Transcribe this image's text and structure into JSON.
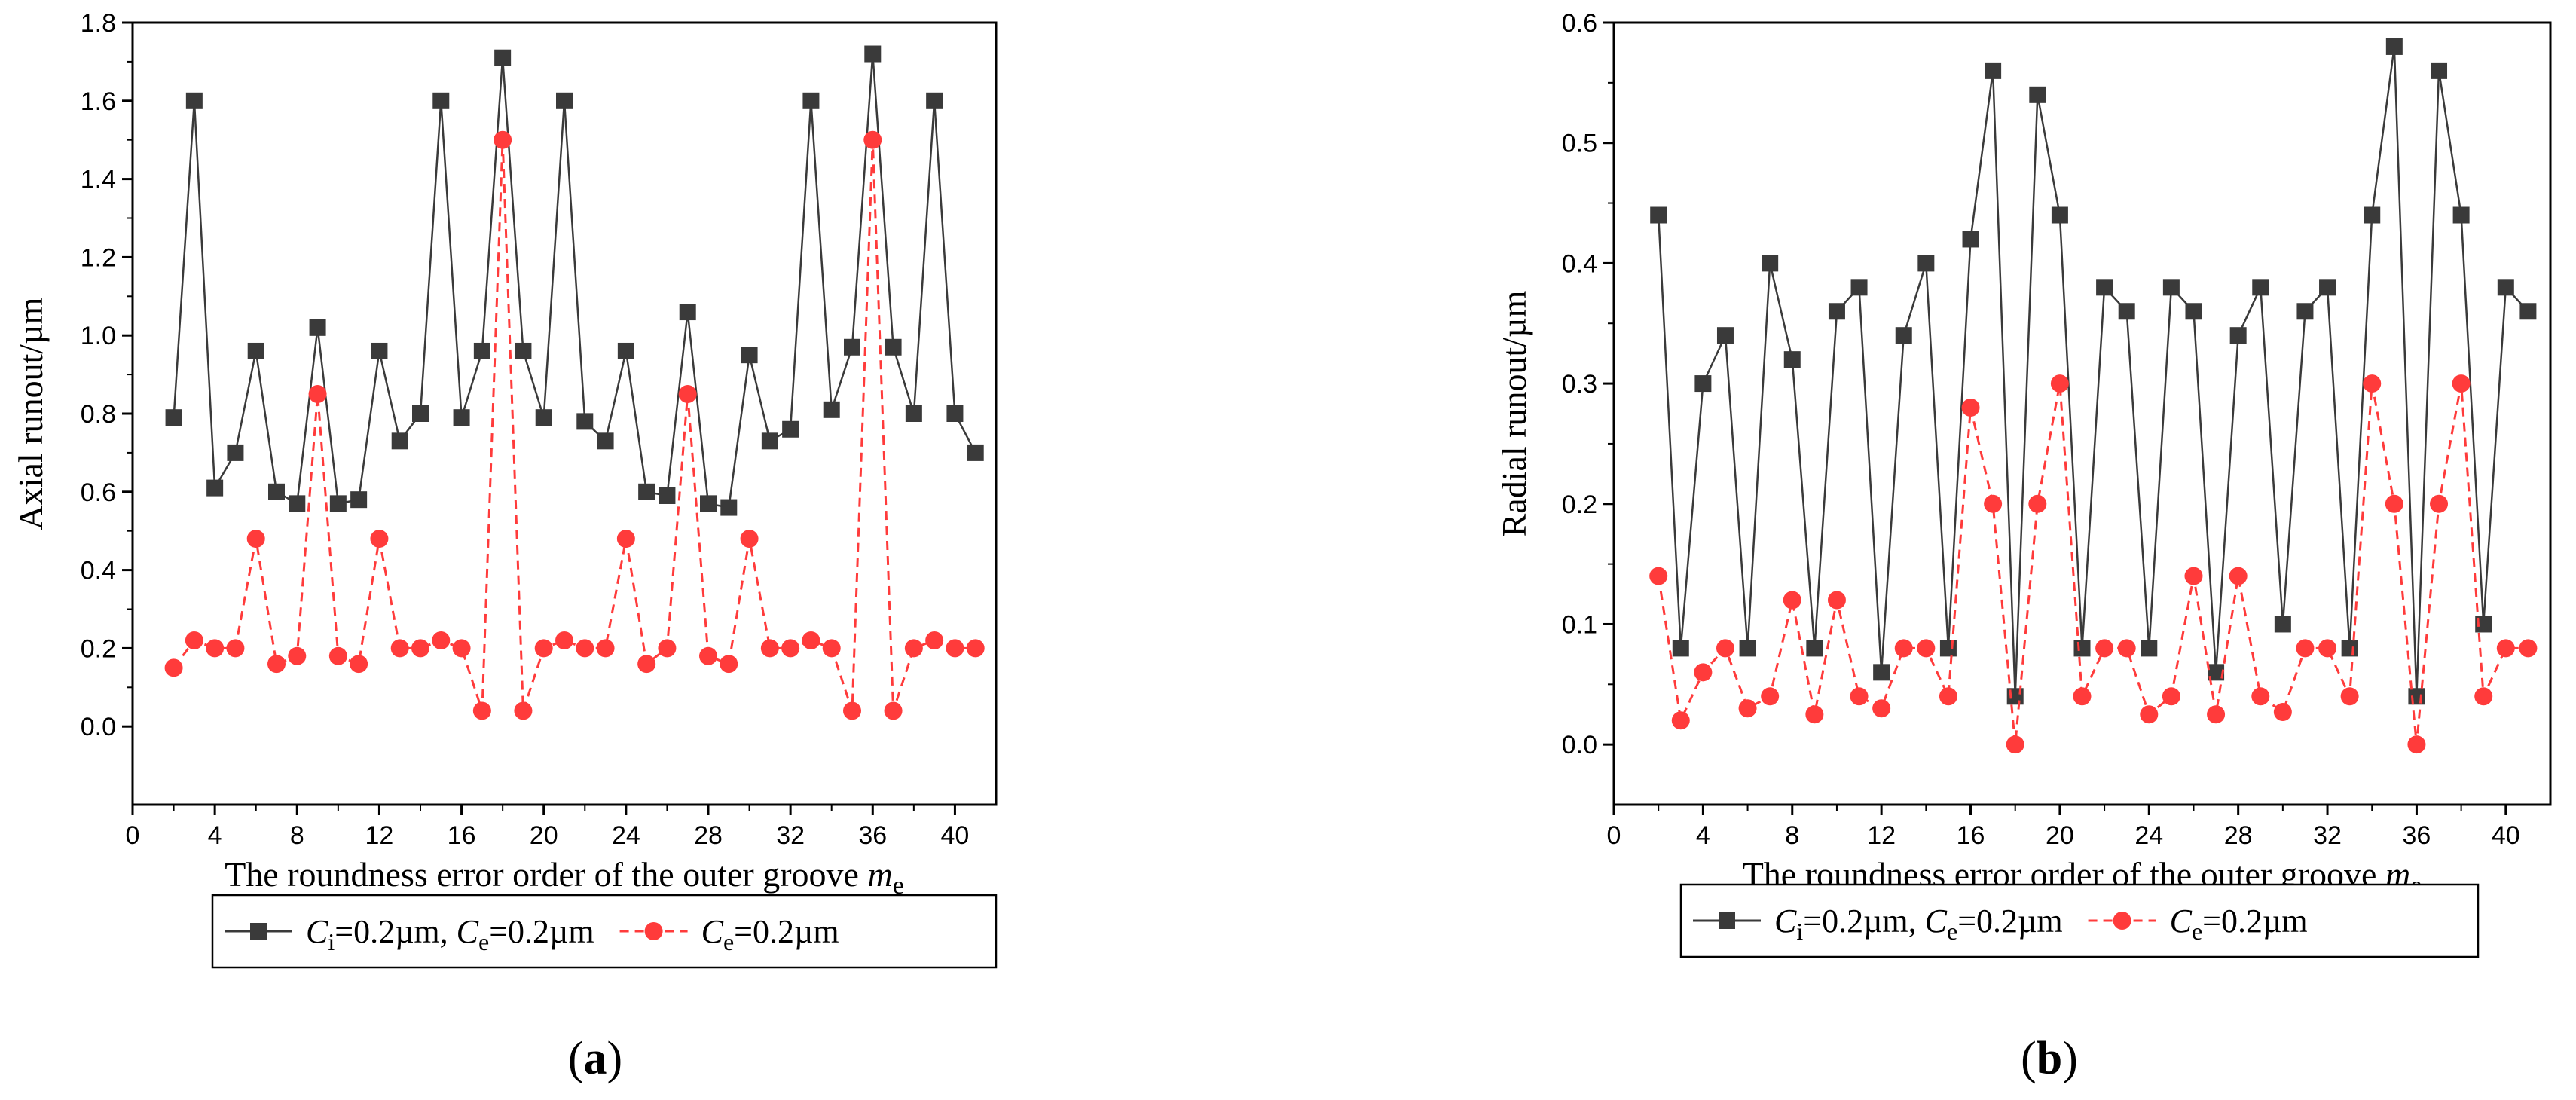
{
  "chart_data": [
    {
      "type": "line",
      "panel_label": "a",
      "xlabel": "The roundness error order of the outer groove ",
      "xlabel_var": "m",
      "xlabel_sub": "e",
      "ylabel": "Axial runout/µm",
      "xlim": [
        0,
        42
      ],
      "ylim": [
        -0.2,
        1.8
      ],
      "xticks": [
        0,
        4,
        8,
        12,
        16,
        20,
        24,
        28,
        32,
        36,
        40
      ],
      "xtick_labels": [
        "0",
        "4",
        "8",
        "12",
        "16",
        "20",
        "24",
        "28",
        "32",
        "36",
        "40"
      ],
      "yticks": [
        0.0,
        0.2,
        0.4,
        0.6,
        0.8,
        1.0,
        1.2,
        1.4,
        1.6,
        1.8
      ],
      "ytick_labels": [
        "0.0",
        "0.2",
        "0.4",
        "0.6",
        "0.8",
        "1.0",
        "1.2",
        "1.4",
        "1.6",
        "1.8"
      ],
      "x": [
        2,
        3,
        4,
        5,
        6,
        7,
        8,
        9,
        10,
        11,
        12,
        13,
        14,
        15,
        16,
        17,
        18,
        19,
        20,
        21,
        22,
        23,
        24,
        25,
        26,
        27,
        28,
        29,
        30,
        31,
        32,
        33,
        34,
        35,
        36,
        37,
        38,
        39,
        40,
        41
      ],
      "series": [
        {
          "name": "Ci=0.2µm, Ce=0.2µm",
          "legend_parts": [
            [
              "C",
              ""
            ],
            [
              "i",
              "sub"
            ],
            [
              "=0.2µm, ",
              ""
            ],
            [
              "C",
              ""
            ],
            [
              "e",
              "sub"
            ],
            [
              "=0.2µm",
              ""
            ]
          ],
          "color": "#3a3a3a",
          "marker": "square",
          "dash": "solid",
          "values": [
            0.79,
            1.6,
            0.61,
            0.7,
            0.96,
            0.6,
            0.57,
            1.02,
            0.57,
            0.58,
            0.96,
            0.73,
            0.8,
            1.6,
            0.79,
            0.96,
            1.71,
            0.96,
            0.79,
            1.6,
            0.78,
            0.73,
            0.96,
            0.6,
            0.59,
            1.06,
            0.57,
            0.56,
            0.95,
            0.73,
            0.76,
            1.6,
            0.81,
            0.97,
            1.72,
            0.97,
            0.8,
            1.6,
            0.8,
            0.7
          ]
        },
        {
          "name": "Ce=0.2µm",
          "legend_parts": [
            [
              "C",
              ""
            ],
            [
              "e",
              "sub"
            ],
            [
              "=0.2µm",
              ""
            ]
          ],
          "color": "#ff3b3b",
          "marker": "circle",
          "dash": "dashed",
          "values": [
            0.15,
            0.22,
            0.2,
            0.2,
            0.48,
            0.16,
            0.18,
            0.85,
            0.18,
            0.16,
            0.48,
            0.2,
            0.2,
            0.22,
            0.2,
            0.04,
            1.5,
            0.04,
            0.2,
            0.22,
            0.2,
            0.2,
            0.48,
            0.16,
            0.2,
            0.85,
            0.18,
            0.16,
            0.48,
            0.2,
            0.2,
            0.22,
            0.2,
            0.04,
            1.5,
            0.04,
            0.2,
            0.22,
            0.2,
            0.2
          ]
        }
      ]
    },
    {
      "type": "line",
      "panel_label": "b",
      "xlabel": "The roundness error order of the outer groove ",
      "xlabel_var": "m",
      "xlabel_sub": "e",
      "ylabel": "Radial runout/µm",
      "xlim": [
        0,
        42
      ],
      "ylim": [
        -0.05,
        0.6
      ],
      "xticks": [
        0,
        4,
        8,
        12,
        16,
        20,
        24,
        28,
        32,
        36,
        40
      ],
      "xtick_labels": [
        "0",
        "4",
        "8",
        "12",
        "16",
        "20",
        "24",
        "28",
        "32",
        "36",
        "40"
      ],
      "yticks": [
        0.0,
        0.1,
        0.2,
        0.3,
        0.4,
        0.5,
        0.6
      ],
      "ytick_labels": [
        "0.0",
        "0.1",
        "0.2",
        "0.3",
        "0.4",
        "0.5",
        "0.6"
      ],
      "x": [
        2,
        3,
        4,
        5,
        6,
        7,
        8,
        9,
        10,
        11,
        12,
        13,
        14,
        15,
        16,
        17,
        18,
        19,
        20,
        21,
        22,
        23,
        24,
        25,
        26,
        27,
        28,
        29,
        30,
        31,
        32,
        33,
        34,
        35,
        36,
        37,
        38,
        39,
        40,
        41
      ],
      "series": [
        {
          "name": "Ci=0.2µm, Ce=0.2µm",
          "legend_parts": [
            [
              "C",
              ""
            ],
            [
              "i",
              "sub"
            ],
            [
              "=0.2µm, ",
              ""
            ],
            [
              "C",
              ""
            ],
            [
              "e",
              "sub"
            ],
            [
              "=0.2µm",
              ""
            ]
          ],
          "color": "#3a3a3a",
          "marker": "square",
          "dash": "solid",
          "values": [
            0.44,
            0.08,
            0.3,
            0.34,
            0.08,
            0.4,
            0.32,
            0.08,
            0.36,
            0.38,
            0.06,
            0.34,
            0.4,
            0.08,
            0.42,
            0.56,
            0.04,
            0.54,
            0.44,
            0.08,
            0.38,
            0.36,
            0.08,
            0.38,
            0.36,
            0.06,
            0.34,
            0.38,
            0.1,
            0.36,
            0.38,
            0.08,
            0.44,
            0.58,
            0.04,
            0.56,
            0.44,
            0.1,
            0.38,
            0.36
          ]
        },
        {
          "name": "Ce=0.2µm",
          "legend_parts": [
            [
              "C",
              ""
            ],
            [
              "e",
              "sub"
            ],
            [
              "=0.2µm",
              ""
            ]
          ],
          "color": "#ff3b3b",
          "marker": "circle",
          "dash": "dashed",
          "values": [
            0.14,
            0.02,
            0.06,
            0.08,
            0.03,
            0.04,
            0.12,
            0.025,
            0.12,
            0.04,
            0.03,
            0.08,
            0.08,
            0.04,
            0.28,
            0.2,
            0.0,
            0.2,
            0.3,
            0.04,
            0.08,
            0.08,
            0.025,
            0.04,
            0.14,
            0.025,
            0.14,
            0.04,
            0.027,
            0.08,
            0.08,
            0.04,
            0.3,
            0.2,
            0.0,
            0.2,
            0.3,
            0.04,
            0.08,
            0.08
          ]
        }
      ]
    }
  ]
}
